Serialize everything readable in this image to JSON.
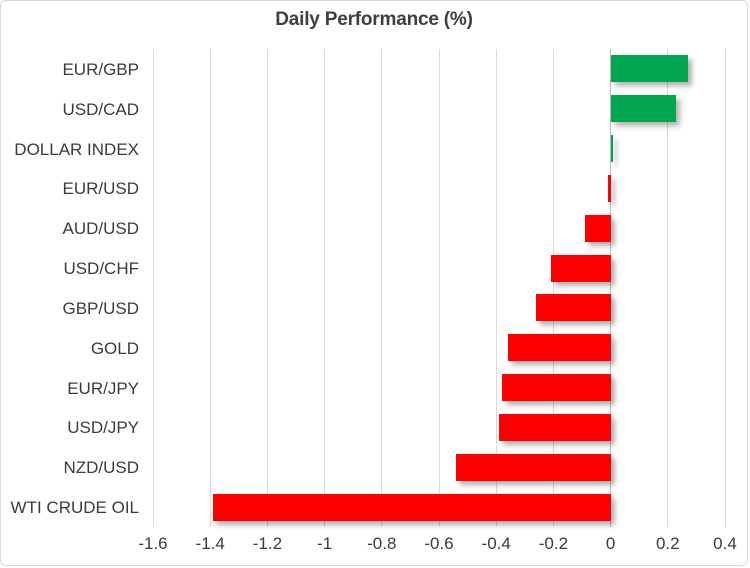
{
  "chart_data": {
    "type": "bar",
    "orientation": "horizontal",
    "title": "Daily Performance (%)",
    "categories": [
      "EUR/GBP",
      "USD/CAD",
      "DOLLAR INDEX",
      "EUR/USD",
      "AUD/USD",
      "USD/CHF",
      "GBP/USD",
      "GOLD",
      "EUR/JPY",
      "USD/JPY",
      "NZD/USD",
      "WTI CRUDE OIL"
    ],
    "values": [
      0.27,
      0.23,
      0.01,
      -0.01,
      -0.09,
      -0.21,
      -0.26,
      -0.36,
      -0.38,
      -0.39,
      -0.54,
      -1.39
    ],
    "xlabel": "",
    "ylabel": "",
    "xlim": [
      -1.6,
      0.4
    ],
    "xticks": [
      -1.6,
      -1.4,
      -1.2,
      -1.0,
      -0.8,
      -0.6,
      -0.4,
      -0.2,
      0,
      0.2,
      0.4
    ],
    "xtick_labels": [
      "-1.6",
      "-1.4",
      "-1.2",
      "-1",
      "-0.8",
      "-0.6",
      "-0.4",
      "-0.2",
      "0",
      "0.2",
      "0.4"
    ],
    "grid": true,
    "legend": false,
    "colors": {
      "positive": "#00a64f",
      "negative": "#fe0000",
      "gridline": "#d9d9d9",
      "zero_line": "#bfbfbf",
      "text": "#3b3b3b",
      "title_text": "#3f3f3f",
      "background": "#ffffff",
      "border": "#d8d8d8"
    }
  }
}
